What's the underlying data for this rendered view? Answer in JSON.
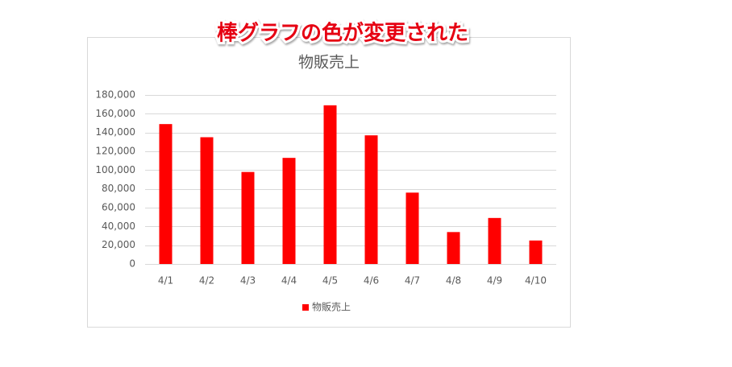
{
  "chart_data": {
    "type": "bar",
    "annotation": "棒グラフの色が変更された",
    "title": "物販売上",
    "categories": [
      "4/1",
      "4/2",
      "4/3",
      "4/4",
      "4/5",
      "4/6",
      "4/7",
      "4/8",
      "4/9",
      "4/10"
    ],
    "series": [
      {
        "name": "物販売上",
        "color": "#ff0000",
        "values": [
          149000,
          135000,
          98000,
          113000,
          169000,
          137000,
          76000,
          34000,
          49000,
          25000
        ]
      }
    ],
    "ylim": [
      0,
      180000
    ],
    "yticks": [
      0,
      {
        "value": 20000,
        "label": "20,000"
      },
      {
        "value": 40000,
        "label": "40,000"
      },
      {
        "value": 60000,
        "label": "60,000"
      },
      {
        "value": 80000,
        "label": "80,000"
      },
      {
        "value": 100000,
        "label": "100,000"
      },
      {
        "value": 120000,
        "label": "120,000"
      },
      {
        "value": 140000,
        "label": "140,000"
      },
      {
        "value": 160000,
        "label": "160,000"
      },
      {
        "value": 180000,
        "label": "180,000"
      }
    ],
    "grid": true,
    "legend": "bottom"
  }
}
